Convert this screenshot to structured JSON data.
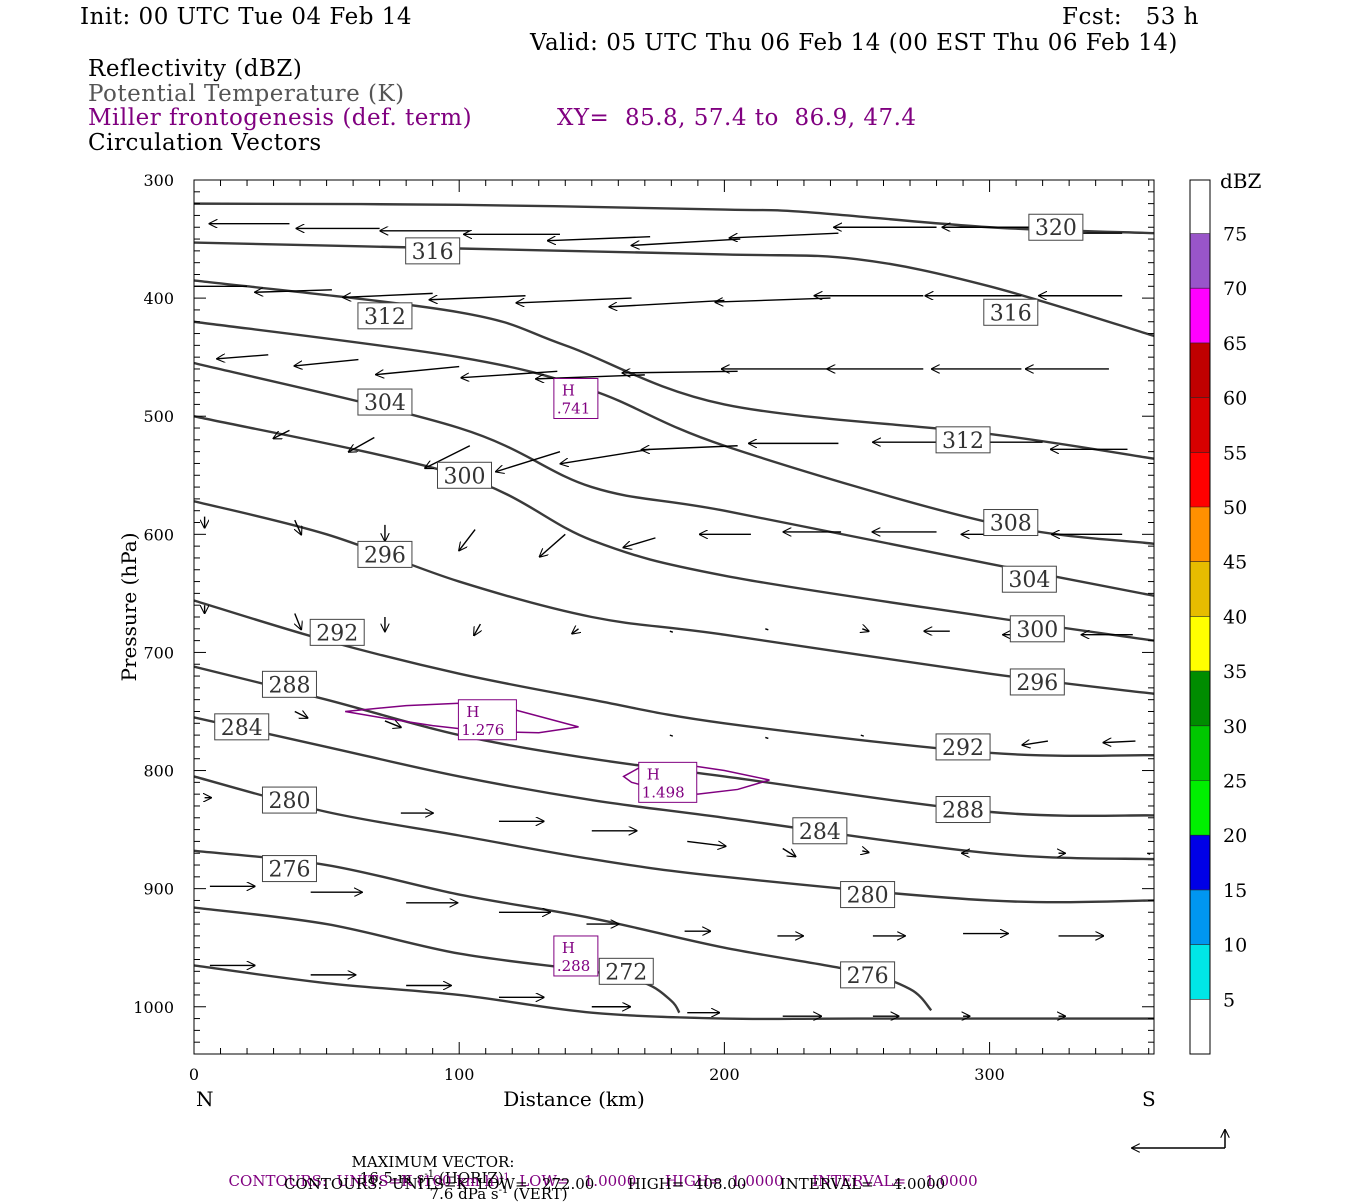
{
  "header": {
    "init": "Init: 00 UTC Tue 04 Feb 14",
    "fcst": "Fcst:   53 h",
    "valid": "Valid: 05 UTC Thu 06 Feb 14 (00 EST Thu 06 Feb 14)"
  },
  "fields": {
    "reflectivity": "Reflectivity (dBZ)",
    "potential_temperature": "Potential Temperature (K)",
    "frontogenesis": "Miller frontogenesis (def. term)",
    "xy": "XY=  85.8, 57.4 to  86.9, 47.4",
    "circulation": "Circulation Vectors"
  },
  "colors": {
    "theta_line": "#3a3a3a",
    "fronto": "#800080",
    "axis": "#000000"
  },
  "chart_data": {
    "type": "line",
    "xlabel": "Distance (km)",
    "ylabel": "Pressure (hPa)",
    "xlim": [
      0,
      362
    ],
    "ylim": [
      1040,
      300
    ],
    "x_ticks": [
      0,
      100,
      200,
      300
    ],
    "y_ticks": [
      300,
      400,
      500,
      600,
      700,
      800,
      900,
      1000
    ],
    "left_end_label": "N",
    "right_end_label": "S",
    "theta_series": [
      {
        "label": "320",
        "x": [
          0,
          100,
          200,
          230,
          300,
          362
        ],
        "y": [
          320,
          321,
          325,
          327,
          340,
          345
        ]
      },
      {
        "label": "316",
        "x": [
          0,
          100,
          200,
          250,
          300,
          362
        ],
        "y": [
          353,
          358,
          363,
          367,
          390,
          432
        ]
      },
      {
        "label": "312",
        "x": [
          0,
          100,
          140,
          200,
          300,
          362
        ],
        "y": [
          385,
          412,
          440,
          490,
          515,
          536
        ]
      },
      {
        "label": "308",
        "x": [
          0,
          100,
          150,
          200,
          300,
          362
        ],
        "y": [
          420,
          450,
          478,
          525,
          590,
          608
        ]
      },
      {
        "label": "304",
        "x": [
          0,
          100,
          150,
          200,
          300,
          362
        ],
        "y": [
          455,
          510,
          560,
          580,
          625,
          652
        ]
      },
      {
        "label": "300",
        "x": [
          0,
          100,
          150,
          200,
          300,
          362
        ],
        "y": [
          500,
          550,
          605,
          635,
          670,
          690
        ]
      },
      {
        "label": "296",
        "x": [
          0,
          50,
          100,
          150,
          200,
          300,
          362
        ],
        "y": [
          572,
          600,
          640,
          670,
          685,
          718,
          735
        ]
      },
      {
        "label": "292",
        "x": [
          0,
          50,
          100,
          150,
          200,
          300,
          362
        ],
        "y": [
          656,
          690,
          718,
          740,
          760,
          785,
          787
        ]
      },
      {
        "label": "288",
        "x": [
          0,
          50,
          100,
          150,
          200,
          300,
          362
        ],
        "y": [
          712,
          740,
          770,
          790,
          805,
          835,
          838
        ]
      },
      {
        "label": "284",
        "x": [
          0,
          50,
          100,
          150,
          200,
          300,
          362
        ],
        "y": [
          755,
          780,
          805,
          825,
          840,
          870,
          875
        ]
      },
      {
        "label": "280",
        "x": [
          0,
          50,
          100,
          150,
          200,
          300,
          362
        ],
        "y": [
          805,
          835,
          855,
          875,
          890,
          910,
          910
        ]
      },
      {
        "label": "276",
        "x": [
          0,
          50,
          100,
          150,
          200,
          250,
          270,
          278
        ],
        "y": [
          868,
          880,
          905,
          925,
          950,
          970,
          985,
          1003
        ]
      },
      {
        "label": "272",
        "x": [
          0,
          50,
          100,
          150,
          170,
          180,
          183
        ],
        "y": [
          916,
          930,
          955,
          970,
          980,
          995,
          1005
        ]
      },
      {
        "label": "",
        "x": [
          0,
          50,
          100,
          150,
          200,
          250,
          362
        ],
        "y": [
          965,
          980,
          990,
          1005,
          1010,
          1010,
          1010
        ]
      }
    ],
    "theta_labels": [
      {
        "text": "320",
        "x": 325,
        "y": 340
      },
      {
        "text": "316",
        "x": 90,
        "y": 360
      },
      {
        "text": "316",
        "x": 308,
        "y": 412
      },
      {
        "text": "312",
        "x": 72,
        "y": 415
      },
      {
        "text": "312",
        "x": 290,
        "y": 520
      },
      {
        "text": "308",
        "x": 308,
        "y": 590
      },
      {
        "text": "304",
        "x": 72,
        "y": 488
      },
      {
        "text": "304",
        "x": 315,
        "y": 638
      },
      {
        "text": "300",
        "x": 102,
        "y": 550
      },
      {
        "text": "300",
        "x": 318,
        "y": 680
      },
      {
        "text": "296",
        "x": 72,
        "y": 617
      },
      {
        "text": "296",
        "x": 318,
        "y": 725
      },
      {
        "text": "292",
        "x": 54,
        "y": 683
      },
      {
        "text": "292",
        "x": 290,
        "y": 780
      },
      {
        "text": "288",
        "x": 36,
        "y": 727
      },
      {
        "text": "288",
        "x": 290,
        "y": 833
      },
      {
        "text": "284",
        "x": 18,
        "y": 763
      },
      {
        "text": "284",
        "x": 236,
        "y": 851
      },
      {
        "text": "280",
        "x": 36,
        "y": 825
      },
      {
        "text": "280",
        "x": 254,
        "y": 905
      },
      {
        "text": "276",
        "x": 36,
        "y": 883
      },
      {
        "text": "276",
        "x": 254,
        "y": 973
      },
      {
        "text": "272",
        "x": 163,
        "y": 970
      }
    ],
    "fronto_maxima": [
      {
        "text": "H",
        "value": ".741",
        "x": 144,
        "y": 485
      },
      {
        "text": "H",
        "value": "1.276",
        "x": 108,
        "y": 757
      },
      {
        "text": "H",
        "value": "1.498",
        "x": 176,
        "y": 810
      },
      {
        "text": "H",
        "value": ".288",
        "x": 144,
        "y": 957
      }
    ],
    "fronto_contours": [
      {
        "x": [
          57,
          80,
          100,
          120,
          145,
          130,
          110,
          90,
          70,
          57
        ],
        "y": [
          750,
          745,
          743,
          748,
          763,
          768,
          767,
          762,
          755,
          750
        ]
      },
      {
        "x": [
          162,
          170,
          185,
          200,
          217,
          205,
          190,
          175,
          165,
          162
        ],
        "y": [
          805,
          795,
          795,
          800,
          808,
          816,
          820,
          816,
          810,
          805
        ]
      }
    ],
    "vectors": [
      {
        "x": 36,
        "y": 337,
        "u": -25,
        "w": 0
      },
      {
        "x": 70,
        "y": 341,
        "u": -26,
        "w": 0
      },
      {
        "x": 104,
        "y": 343,
        "u": -28,
        "w": 0
      },
      {
        "x": 138,
        "y": 346,
        "u": -30,
        "w": 0
      },
      {
        "x": 172,
        "y": 348,
        "u": -32,
        "w": 5
      },
      {
        "x": 206,
        "y": 350,
        "u": -34,
        "w": 8
      },
      {
        "x": 243,
        "y": 345,
        "u": -34,
        "w": 6
      },
      {
        "x": 280,
        "y": 340,
        "u": -32,
        "w": 0
      },
      {
        "x": 316,
        "y": 340,
        "u": -28,
        "w": 0
      },
      {
        "x": 350,
        "y": 345,
        "u": -25,
        "w": 0
      },
      {
        "x": 20,
        "y": 390,
        "u": -20,
        "w": 0
      },
      {
        "x": 52,
        "y": 393,
        "u": -24,
        "w": 3
      },
      {
        "x": 90,
        "y": 396,
        "u": -28,
        "w": 5
      },
      {
        "x": 125,
        "y": 398,
        "u": -30,
        "w": 5
      },
      {
        "x": 165,
        "y": 400,
        "u": -36,
        "w": 6
      },
      {
        "x": 200,
        "y": 402,
        "u": -36,
        "w": 8
      },
      {
        "x": 240,
        "y": 400,
        "u": -36,
        "w": 5
      },
      {
        "x": 275,
        "y": 398,
        "u": -34,
        "w": 0
      },
      {
        "x": 312,
        "y": 398,
        "u": -30,
        "w": 0
      },
      {
        "x": 350,
        "y": 398,
        "u": -26,
        "w": 0
      },
      {
        "x": 28,
        "y": 448,
        "u": -16,
        "w": 5
      },
      {
        "x": 62,
        "y": 452,
        "u": -20,
        "w": 8
      },
      {
        "x": 100,
        "y": 458,
        "u": -26,
        "w": 10
      },
      {
        "x": 137,
        "y": 462,
        "u": -30,
        "w": 8
      },
      {
        "x": 170,
        "y": 465,
        "u": -34,
        "w": 5
      },
      {
        "x": 205,
        "y": 462,
        "u": -36,
        "w": 2
      },
      {
        "x": 240,
        "y": 460,
        "u": -34,
        "w": 0
      },
      {
        "x": 275,
        "y": 460,
        "u": -30,
        "w": 0
      },
      {
        "x": 312,
        "y": 460,
        "u": -28,
        "w": 0
      },
      {
        "x": 345,
        "y": 460,
        "u": -26,
        "w": 0
      },
      {
        "x": 36,
        "y": 512,
        "u": -5,
        "w": 10
      },
      {
        "x": 68,
        "y": 518,
        "u": -8,
        "w": 18
      },
      {
        "x": 104,
        "y": 525,
        "u": -14,
        "w": 28
      },
      {
        "x": 138,
        "y": 530,
        "u": -20,
        "w": 25
      },
      {
        "x": 172,
        "y": 528,
        "u": -28,
        "w": 18
      },
      {
        "x": 205,
        "y": 525,
        "u": -30,
        "w": 5
      },
      {
        "x": 243,
        "y": 523,
        "u": -28,
        "w": 0
      },
      {
        "x": 285,
        "y": 522,
        "u": -24,
        "w": 0
      },
      {
        "x": 320,
        "y": 522,
        "u": -22,
        "w": 0
      },
      {
        "x": 352,
        "y": 528,
        "u": -24,
        "w": 0
      },
      {
        "x": 4,
        "y": 585,
        "u": 0,
        "w": 14
      },
      {
        "x": 38,
        "y": 588,
        "u": 2,
        "w": 18
      },
      {
        "x": 72,
        "y": 592,
        "u": 0,
        "w": 20
      },
      {
        "x": 106,
        "y": 596,
        "u": -5,
        "w": 26
      },
      {
        "x": 140,
        "y": 600,
        "u": -8,
        "w": 28
      },
      {
        "x": 174,
        "y": 603,
        "u": -10,
        "w": 12
      },
      {
        "x": 210,
        "y": 600,
        "u": -16,
        "w": 0
      },
      {
        "x": 244,
        "y": 598,
        "u": -18,
        "w": 0
      },
      {
        "x": 280,
        "y": 598,
        "u": -20,
        "w": 0
      },
      {
        "x": 316,
        "y": 600,
        "u": -22,
        "w": 0
      },
      {
        "x": 350,
        "y": 600,
        "u": -22,
        "w": 0
      },
      {
        "x": 4,
        "y": 660,
        "u": 0,
        "w": 10
      },
      {
        "x": 38,
        "y": 667,
        "u": 2,
        "w": 20
      },
      {
        "x": 72,
        "y": 670,
        "u": 0,
        "w": 18
      },
      {
        "x": 108,
        "y": 676,
        "u": -2,
        "w": 14
      },
      {
        "x": 145,
        "y": 680,
        "u": -2,
        "w": 6
      },
      {
        "x": 180,
        "y": 682,
        "u": 0,
        "w": 0
      },
      {
        "x": 216,
        "y": 680,
        "u": 0,
        "w": 0
      },
      {
        "x": 252,
        "y": 680,
        "u": 2,
        "w": 3
      },
      {
        "x": 285,
        "y": 682,
        "u": -8,
        "w": 0
      },
      {
        "x": 322,
        "y": 685,
        "u": -14,
        "w": 0
      },
      {
        "x": 354,
        "y": 685,
        "u": -16,
        "w": 0
      },
      {
        "x": 38,
        "y": 750,
        "u": 4,
        "w": 8
      },
      {
        "x": 72,
        "y": 758,
        "u": 5,
        "w": 8
      },
      {
        "x": 180,
        "y": 770,
        "u": 0,
        "w": 0
      },
      {
        "x": 216,
        "y": 772,
        "u": 0,
        "w": 2
      },
      {
        "x": 252,
        "y": 770,
        "u": 0,
        "w": 0
      },
      {
        "x": 322,
        "y": 775,
        "u": -8,
        "w": 5
      },
      {
        "x": 355,
        "y": 775,
        "u": -10,
        "w": 2
      },
      {
        "x": 4,
        "y": 823,
        "u": 2,
        "w": 0
      },
      {
        "x": 38,
        "y": 826,
        "u": 6,
        "w": 0
      },
      {
        "x": 78,
        "y": 836,
        "u": 10,
        "w": 0
      },
      {
        "x": 115,
        "y": 843,
        "u": 14,
        "w": 0
      },
      {
        "x": 150,
        "y": 851,
        "u": 14,
        "w": 0
      },
      {
        "x": 186,
        "y": 860,
        "u": 12,
        "w": 6
      },
      {
        "x": 222,
        "y": 866,
        "u": 4,
        "w": 10
      },
      {
        "x": 252,
        "y": 868,
        "u": 2,
        "w": 2
      },
      {
        "x": 292,
        "y": 870,
        "u": -2,
        "w": 0
      },
      {
        "x": 326,
        "y": 870,
        "u": 2,
        "w": 0
      },
      {
        "x": 360,
        "y": 870,
        "u": 0,
        "w": 2
      },
      {
        "x": 6,
        "y": 898,
        "u": 14,
        "w": 0
      },
      {
        "x": 44,
        "y": 903,
        "u": 16,
        "w": 0
      },
      {
        "x": 80,
        "y": 912,
        "u": 16,
        "w": 0
      },
      {
        "x": 115,
        "y": 920,
        "u": 16,
        "w": 0
      },
      {
        "x": 148,
        "y": 930,
        "u": 10,
        "w": 0
      },
      {
        "x": 185,
        "y": 936,
        "u": 8,
        "w": 0
      },
      {
        "x": 220,
        "y": 940,
        "u": 8,
        "w": 0
      },
      {
        "x": 256,
        "y": 940,
        "u": 10,
        "w": 0
      },
      {
        "x": 290,
        "y": 938,
        "u": 14,
        "w": 0
      },
      {
        "x": 326,
        "y": 940,
        "u": 14,
        "w": 0
      },
      {
        "x": 6,
        "y": 965,
        "u": 14,
        "w": 0
      },
      {
        "x": 44,
        "y": 973,
        "u": 14,
        "w": 0
      },
      {
        "x": 80,
        "y": 982,
        "u": 14,
        "w": 0
      },
      {
        "x": 115,
        "y": 992,
        "u": 14,
        "w": 0
      },
      {
        "x": 150,
        "y": 1000,
        "u": 12,
        "w": 0
      },
      {
        "x": 186,
        "y": 1005,
        "u": 10,
        "w": 0
      },
      {
        "x": 222,
        "y": 1008,
        "u": 12,
        "w": 0
      },
      {
        "x": 256,
        "y": 1008,
        "u": 8,
        "w": 0
      },
      {
        "x": 290,
        "y": 1008,
        "u": 2,
        "w": 0
      },
      {
        "x": 326,
        "y": 1008,
        "u": 2,
        "w": 0
      }
    ],
    "colorbar": {
      "unit": "dBZ",
      "levels": [
        "5",
        "10",
        "15",
        "20",
        "25",
        "30",
        "35",
        "40",
        "45",
        "50",
        "55",
        "60",
        "65",
        "70",
        "75"
      ],
      "colors": [
        "#00e6e6",
        "#0096f0",
        "#0000e6",
        "#00f000",
        "#00c800",
        "#008c00",
        "#ffff00",
        "#e6bc00",
        "#ff9000",
        "#ff0000",
        "#d70000",
        "#c00000",
        "#ff00ff",
        "#9955c9",
        "#ffffff",
        "#ffffff"
      ]
    }
  },
  "footer": {
    "max_vector_label": "MAXIMUM VECTOR:",
    "max_vector_horiz": "16.5 m s",
    "horiz_tag": " (HORIZ)",
    "max_vector_vert": "7.6 dPa s",
    "vert_tag": " (VERT)",
    "sup": "-1",
    "contours1_a": "CONTOURS:  UNITS=K (100 km h)",
    "contours1_sup": "-1",
    "contours1_b": "  LOW=   1.0000      HIGH=  1.0000      INTERVAL=    1.0000",
    "contours2": "CONTOURS:  UNITS=K  LOW=   272.00       HIGH=  408.00       INTERVAL=    4.0000"
  }
}
